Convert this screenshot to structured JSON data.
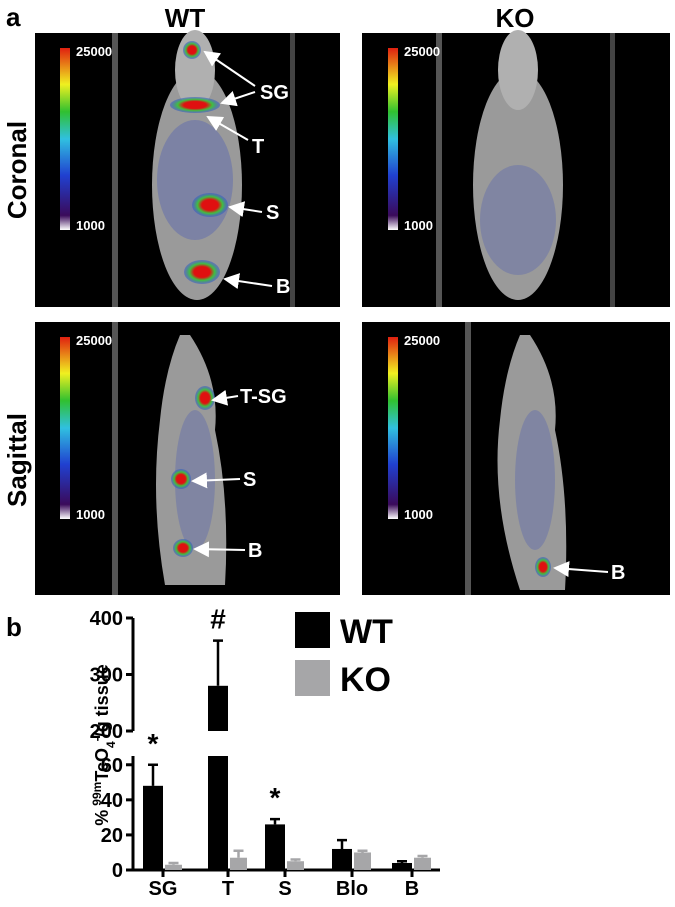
{
  "panel_a": {
    "label": "a",
    "columns": [
      "WT",
      "KO"
    ],
    "rows": [
      "Coronal",
      "Sagittal"
    ],
    "colorbar": {
      "max": 25000,
      "min": 1000
    },
    "annotations": {
      "coronal_wt": [
        "SG",
        "T",
        "S",
        "B"
      ],
      "sagittal_wt": [
        "T-SG",
        "S",
        "B"
      ],
      "sagittal_ko": [
        "B"
      ]
    }
  },
  "panel_b_label": "b",
  "chart_data": {
    "type": "bar",
    "ylabel": {
      "prefix": "%",
      "isotope": "99m",
      "compound": "TcO",
      "subscript": "4",
      "charge": "-",
      "suffix": "/g tissue"
    },
    "categories": [
      "SG",
      "T",
      "S",
      "Blo",
      "B"
    ],
    "series": [
      {
        "name": "WT",
        "color": "#000000",
        "values": [
          48,
          280,
          26,
          12,
          4
        ],
        "errors": [
          12,
          80,
          3,
          5,
          1
        ]
      },
      {
        "name": "KO",
        "color": "#a6a6a8",
        "values": [
          3,
          7,
          5,
          10,
          7
        ],
        "errors": [
          1,
          4,
          1,
          1,
          1
        ]
      }
    ],
    "y_segments": [
      {
        "lim": [
          0,
          65
        ],
        "ticks": [
          0,
          20,
          40,
          60
        ]
      },
      {
        "lim": [
          200,
          400
        ],
        "ticks": [
          200,
          300,
          400
        ]
      }
    ],
    "annotations": [
      "*",
      "#",
      "*"
    ]
  }
}
